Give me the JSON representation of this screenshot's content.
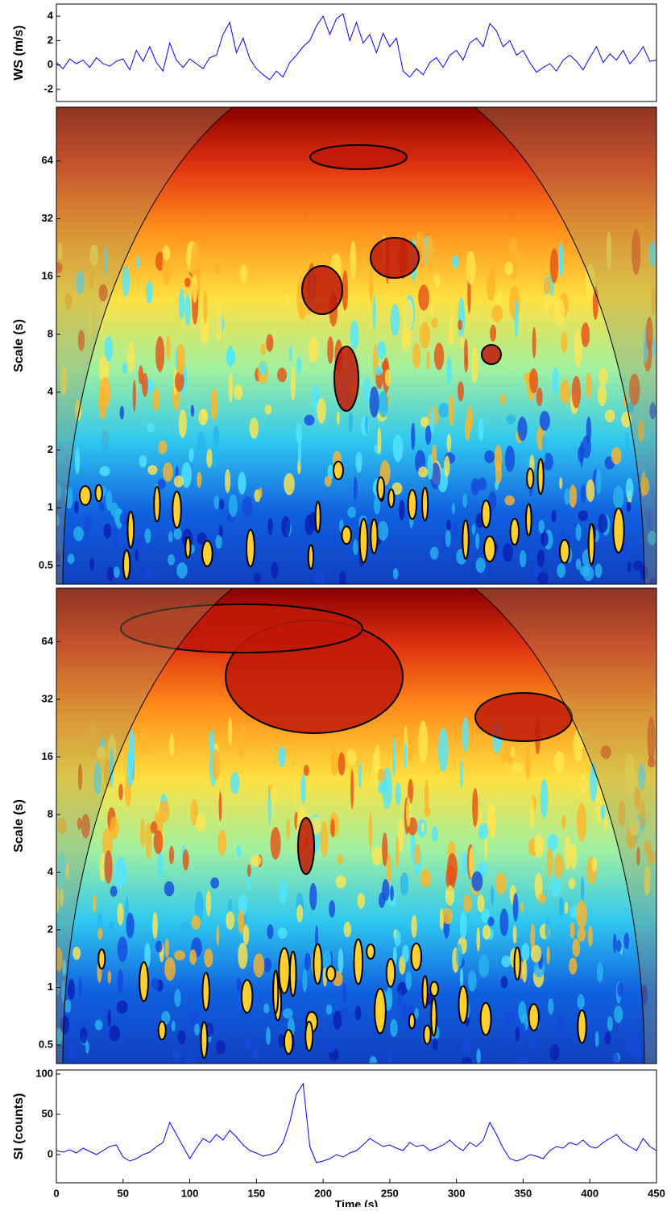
{
  "chart_data": [
    {
      "type": "line",
      "ylabel": "WS (m/s)",
      "color": "#0000ff",
      "xlim": [
        0,
        450
      ],
      "ylim": [
        -3,
        5
      ],
      "yticks": [
        -2,
        0,
        2,
        4
      ],
      "x": [
        0,
        5,
        10,
        15,
        20,
        25,
        30,
        35,
        40,
        45,
        50,
        55,
        60,
        65,
        70,
        75,
        80,
        85,
        90,
        95,
        100,
        105,
        110,
        115,
        120,
        125,
        130,
        135,
        140,
        145,
        150,
        155,
        160,
        165,
        170,
        175,
        180,
        185,
        190,
        195,
        200,
        205,
        210,
        215,
        220,
        225,
        230,
        235,
        240,
        245,
        250,
        255,
        260,
        265,
        270,
        275,
        280,
        285,
        290,
        295,
        300,
        305,
        310,
        315,
        320,
        325,
        330,
        335,
        340,
        345,
        350,
        355,
        360,
        365,
        370,
        375,
        380,
        385,
        390,
        395,
        400,
        405,
        410,
        415,
        420,
        425,
        430,
        435,
        440,
        445,
        450
      ],
      "values": [
        0.2,
        -0.3,
        0.5,
        0.1,
        0.4,
        -0.2,
        0.6,
        0.1,
        -0.1,
        0.3,
        0.5,
        -0.4,
        1.2,
        0.3,
        1.5,
        0.2,
        -0.5,
        1.8,
        0.4,
        -0.2,
        0.5,
        0.1,
        -0.3,
        0.6,
        0.8,
        2.5,
        3.5,
        1.0,
        2.2,
        0.5,
        -0.3,
        -0.8,
        -1.2,
        -0.5,
        -1.0,
        0.2,
        0.8,
        1.5,
        2.0,
        3.2,
        4.0,
        2.5,
        3.8,
        4.2,
        2.0,
        3.5,
        1.8,
        2.5,
        1.0,
        2.6,
        1.5,
        2.2,
        -0.5,
        -1.0,
        -0.3,
        -0.8,
        0.2,
        0.6,
        -0.2,
        0.8,
        1.2,
        0.4,
        1.8,
        2.2,
        1.5,
        3.4,
        2.8,
        1.5,
        2.0,
        0.8,
        1.2,
        0.2,
        -0.6,
        -0.2,
        0.1,
        -0.5,
        0.4,
        0.8,
        0.3,
        -0.4,
        0.6,
        1.5,
        0.2,
        0.9,
        0.4,
        1.2,
        0.1,
        0.7,
        1.5,
        0.3,
        0.4
      ]
    },
    {
      "type": "wavelet",
      "ylabel": "Scale (s)",
      "log_scale": true,
      "xlim": [
        0,
        450
      ],
      "ylim": [
        0.4,
        122
      ],
      "yticks": [
        0.5,
        1,
        2,
        4,
        8,
        16,
        32,
        64
      ]
    },
    {
      "type": "wavelet",
      "ylabel": "Scale (s)",
      "log_scale": true,
      "xlim": [
        0,
        450
      ],
      "ylim": [
        0.4,
        122
      ],
      "yticks": [
        0.5,
        1,
        2,
        4,
        8,
        16,
        32,
        64
      ]
    },
    {
      "type": "line",
      "ylabel": "SI (counts)",
      "xlabel": "Time (s)",
      "color": "#0000ff",
      "xlim": [
        0,
        450
      ],
      "ylim": [
        -35,
        105
      ],
      "yticks": [
        0,
        50,
        100
      ],
      "xticks": [
        0,
        50,
        100,
        150,
        200,
        250,
        300,
        350,
        400,
        450
      ],
      "x": [
        0,
        5,
        10,
        15,
        20,
        25,
        30,
        35,
        40,
        45,
        50,
        55,
        60,
        65,
        70,
        75,
        80,
        85,
        90,
        95,
        100,
        105,
        110,
        115,
        120,
        125,
        130,
        135,
        140,
        145,
        150,
        155,
        160,
        165,
        170,
        175,
        180,
        185,
        190,
        195,
        200,
        205,
        210,
        215,
        220,
        225,
        230,
        235,
        240,
        245,
        250,
        255,
        260,
        265,
        270,
        275,
        280,
        285,
        290,
        295,
        300,
        305,
        310,
        315,
        320,
        325,
        330,
        335,
        340,
        345,
        350,
        355,
        360,
        365,
        370,
        375,
        380,
        385,
        390,
        395,
        400,
        405,
        410,
        415,
        420,
        425,
        430,
        435,
        440,
        445,
        450
      ],
      "values": [
        5,
        3,
        6,
        2,
        8,
        4,
        0,
        5,
        10,
        12,
        -3,
        -8,
        -5,
        0,
        3,
        10,
        15,
        40,
        25,
        10,
        -5,
        8,
        20,
        15,
        25,
        18,
        30,
        22,
        12,
        5,
        2,
        -2,
        0,
        3,
        15,
        40,
        75,
        88,
        10,
        -10,
        -8,
        -5,
        0,
        -3,
        2,
        5,
        12,
        20,
        15,
        10,
        12,
        8,
        5,
        15,
        10,
        12,
        5,
        8,
        12,
        18,
        10,
        5,
        15,
        10,
        18,
        40,
        25,
        8,
        -5,
        -8,
        -5,
        0,
        -2,
        -5,
        5,
        10,
        8,
        15,
        12,
        18,
        10,
        8,
        15,
        20,
        25,
        15,
        10,
        5,
        20,
        10,
        5
      ]
    }
  ]
}
